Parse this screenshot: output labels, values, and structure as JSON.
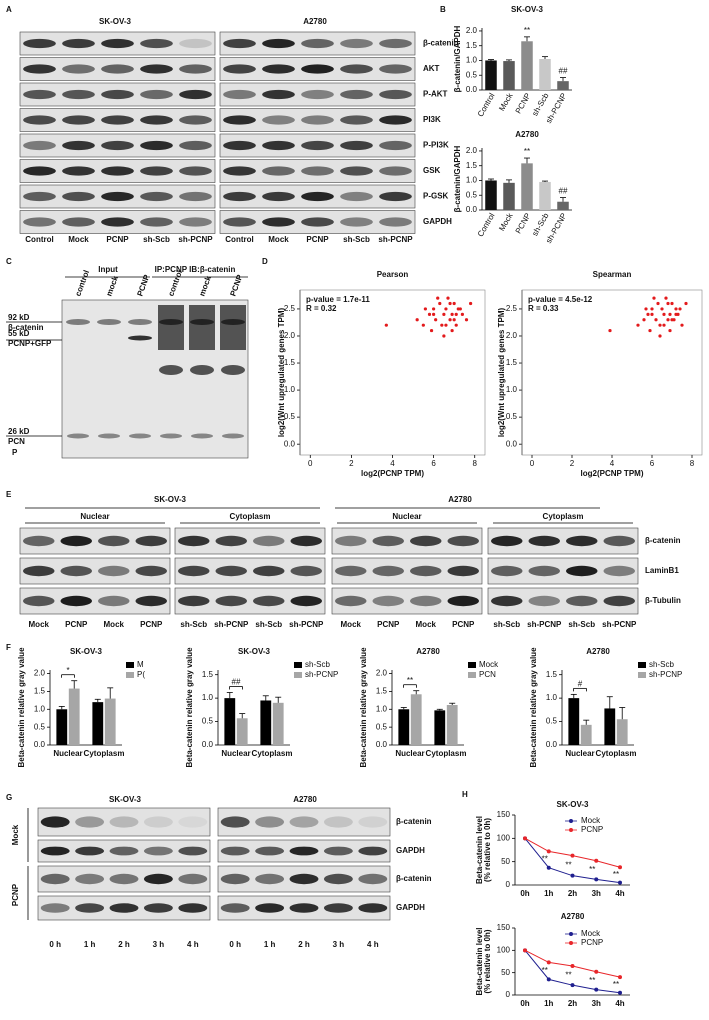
{
  "panel_labels": [
    "A",
    "B",
    "C",
    "D",
    "E",
    "F",
    "G",
    "H"
  ],
  "blot_a": {
    "headers": [
      "SK-OV-3",
      "A2780"
    ],
    "proteins": [
      "β-catenin",
      "AKT",
      "P-AKT",
      "PI3K",
      "P-PI3K",
      "GSK",
      "P-GSK",
      "GAPDH"
    ],
    "lanes": [
      [
        "Control",
        "Mock",
        "PCNP",
        "sh-Scb",
        "sh-PCNP"
      ],
      [
        "Control",
        "Mock",
        "PCNP",
        "sh-Scb",
        "sh-PCNP"
      ]
    ]
  },
  "blot_c": {
    "groups": [
      "Input",
      "IP:PCNP IB:β-catenin"
    ],
    "lanes": [
      "control",
      "mock",
      "PCNP",
      "control",
      "mock",
      "PCNP"
    ],
    "markers": [
      "92 kD",
      "β-catenin",
      "55 kD",
      "PCNP+GFP",
      "26 kD",
      "PCN",
      "P"
    ]
  },
  "blot_e": {
    "cells": [
      "SK-OV-3",
      "A2780"
    ],
    "fractions": [
      "Nuclear",
      "Cytoplasm",
      "Nuclear",
      "Cytoplasm"
    ],
    "proteins": [
      "β-catenin",
      "LaminB1",
      "β-Tubulin"
    ],
    "lanes": [
      [
        "Mock",
        "PCNP",
        "Mock",
        "PCNP"
      ],
      [
        "sh-Scb",
        "sh-PCNP",
        "sh-Scb",
        "sh-PCNP"
      ],
      [
        "Mock",
        "PCNP",
        "Mock",
        "PCNP"
      ],
      [
        "sh-Scb",
        "sh-PCNP",
        "sh-Scb",
        "sh-PCNP"
      ]
    ]
  },
  "blot_g": {
    "cells": [
      "SK-OV-3",
      "A2780"
    ],
    "groups": [
      "Mock",
      "PCNP"
    ],
    "proteins": [
      "β-catenin",
      "GAPDH",
      "β-catenin",
      "GAPDH"
    ],
    "lanes": [
      [
        "0 h",
        "1 h",
        "2 h",
        "3 h",
        "4 h"
      ],
      [
        "0 h",
        "1 h",
        "2 h",
        "3 h",
        "4 h"
      ]
    ]
  },
  "chart_data": [
    {
      "type": "bar",
      "title": "SK-OV-3",
      "ylabel": "β-catenin/GAPDH",
      "categories": [
        "Control",
        "Mock",
        "PCNP",
        "sh-Scb",
        "sh-PCNP"
      ],
      "values": [
        1.0,
        0.98,
        1.65,
        1.05,
        0.3
      ],
      "errors": [
        0.03,
        0.04,
        0.15,
        0.08,
        0.12
      ],
      "colors": [
        "#111111",
        "#5a5a5a",
        "#8c8c8c",
        "#c8c8c8",
        "#666666"
      ],
      "ylim": [
        0,
        2.1
      ],
      "yticks": [
        {
          "value": 0,
          "label": "0.0"
        },
        0.5,
        {
          "value": 1,
          "label": "1.0"
        },
        1.5,
        {
          "value": 2,
          "label": "2.0"
        }
      ],
      "annotations": [
        {
          "text": "**",
          "x": "PCNP"
        },
        {
          "text": "##",
          "x": "sh-PCNP"
        }
      ]
    },
    {
      "type": "bar",
      "title": "A2780",
      "ylabel": "β-catenin/GAPDH",
      "categories": [
        "Control",
        "Mock",
        "PCNP",
        "sh-Scb",
        "sh-PCNP"
      ],
      "values": [
        1.0,
        0.92,
        1.58,
        0.95,
        0.28
      ],
      "errors": [
        0.05,
        0.1,
        0.18,
        0.03,
        0.14
      ],
      "colors": [
        "#111111",
        "#5a5a5a",
        "#8c8c8c",
        "#c8c8c8",
        "#666666"
      ],
      "ylim": [
        0,
        2.1
      ],
      "yticks": [
        {
          "value": 0,
          "label": "0.0"
        },
        0.5,
        {
          "value": 1,
          "label": "1.0"
        },
        1.5,
        {
          "value": 2,
          "label": "2.0"
        }
      ],
      "annotations": [
        {
          "text": "**",
          "x": "PCNP"
        },
        {
          "text": "##",
          "x": "sh-PCNP"
        }
      ]
    },
    {
      "type": "scatter",
      "title": "Pearson",
      "xlabel": "log2(PCNP TPM)",
      "ylabel": "log2(Wnt upregulated genes TPM)",
      "annotations": [
        {
          "text": "p-value = 1.7e-11"
        },
        {
          "text": "R = 0.32"
        }
      ],
      "color": "#e31a1c",
      "x": [
        5.2,
        5.5,
        5.8,
        6.0,
        6.1,
        6.3,
        6.4,
        6.5,
        6.6,
        6.7,
        6.8,
        6.9,
        7.0,
        7.1,
        7.2,
        7.4,
        7.6,
        5.9,
        6.2,
        6.5,
        6.8,
        7.0,
        7.3,
        6.0,
        6.6,
        5.6,
        6.9,
        7.1,
        3.7,
        7.8
      ],
      "values": [
        2.3,
        2.2,
        2.4,
        2.5,
        2.3,
        2.6,
        2.2,
        2.4,
        2.5,
        2.7,
        2.3,
        2.4,
        2.6,
        2.2,
        2.5,
        2.4,
        2.3,
        2.1,
        2.7,
        2.0,
        2.6,
        2.3,
        2.5,
        2.4,
        2.2,
        2.5,
        2.1,
        2.4,
        2.2,
        2.6
      ],
      "xlim": [
        -0.5,
        8.5
      ],
      "xticks": [
        0,
        2,
        4,
        6,
        8
      ],
      "ylim": [
        -0.2,
        2.85
      ],
      "yticks": [
        {
          "value": 0,
          "label": "0.0"
        },
        0.5,
        {
          "value": 1,
          "label": "1.0"
        },
        1.5,
        {
          "value": 2,
          "label": "2.0"
        },
        2.5
      ]
    },
    {
      "type": "scatter",
      "title": "Spearman",
      "xlabel": "log2(PCNP TPM)",
      "ylabel": "log2(Wnt upregulated genes TPM)",
      "annotations": [
        {
          "text": "p-value = 4.5e-12"
        },
        {
          "text": "R = 0.33"
        }
      ],
      "color": "#e31a1c",
      "x": [
        5.3,
        5.6,
        5.8,
        6.0,
        6.2,
        6.3,
        6.4,
        6.5,
        6.6,
        6.7,
        6.8,
        6.9,
        7.0,
        7.1,
        7.2,
        7.3,
        7.5,
        5.9,
        6.1,
        6.4,
        6.8,
        7.0,
        7.4,
        6.0,
        6.6,
        5.7,
        6.9,
        7.2,
        3.9,
        7.7
      ],
      "values": [
        2.2,
        2.3,
        2.4,
        2.5,
        2.3,
        2.6,
        2.2,
        2.5,
        2.4,
        2.7,
        2.3,
        2.4,
        2.6,
        2.3,
        2.5,
        2.4,
        2.2,
        2.1,
        2.7,
        2.0,
        2.6,
        2.3,
        2.5,
        2.4,
        2.2,
        2.5,
        2.1,
        2.4,
        2.1,
        2.6
      ],
      "xlim": [
        -0.5,
        8.5
      ],
      "xticks": [
        0,
        2,
        4,
        6,
        8
      ],
      "ylim": [
        -0.2,
        2.85
      ],
      "yticks": [
        {
          "value": 0,
          "label": "0.0"
        },
        0.5,
        {
          "value": 1,
          "label": "1.0"
        },
        1.5,
        {
          "value": 2,
          "label": "2.0"
        },
        2.5
      ]
    },
    {
      "type": "grouped_bar",
      "title": "SK-OV-3",
      "ylabel": "Beta-catenin relative gray value",
      "categories": [
        "Nuclear",
        "Cytoplasm"
      ],
      "series": [
        {
          "name": "M",
          "color": "#000000",
          "values": [
            1.0,
            1.2
          ],
          "errors": [
            0.08,
            0.08
          ]
        },
        {
          "name": "P(",
          "color": "#a6a6a6",
          "values": [
            1.58,
            1.3
          ],
          "errors": [
            0.22,
            0.3
          ]
        }
      ],
      "ylim": [
        0,
        2.1
      ],
      "yticks": [
        {
          "value": 0,
          "label": "0.0"
        },
        0.5,
        {
          "value": 1,
          "label": "1.0"
        },
        1.5,
        {
          "value": 2,
          "label": "2.0"
        }
      ],
      "annotations": [
        {
          "text": "*",
          "x": "Nuclear"
        }
      ]
    },
    {
      "type": "grouped_bar",
      "title": "SK-OV-3",
      "ylabel": "Beta-catenin relative gray value",
      "categories": [
        "Nuclear",
        "Cytoplasm"
      ],
      "series": [
        {
          "name": "sh-Scb",
          "color": "#000000",
          "values": [
            1.0,
            0.95
          ],
          "errors": [
            0.12,
            0.1
          ]
        },
        {
          "name": "sh-PCNP",
          "color": "#a6a6a6",
          "values": [
            0.57,
            0.9
          ],
          "errors": [
            0.1,
            0.12
          ]
        }
      ],
      "ylim": [
        0,
        1.6
      ],
      "yticks": [
        {
          "value": 0,
          "label": "0.0"
        },
        0.5,
        {
          "value": 1,
          "label": "1.0"
        },
        1.5
      ],
      "annotations": [
        {
          "text": "##",
          "x": "Nuclear"
        }
      ]
    },
    {
      "type": "grouped_bar",
      "title": "A2780",
      "ylabel": "Beta-catenin relative gray value",
      "categories": [
        "Nuclear",
        "Cytoplasm"
      ],
      "series": [
        {
          "name": "Mock",
          "color": "#000000",
          "values": [
            1.0,
            0.97
          ],
          "errors": [
            0.05,
            0.03
          ]
        },
        {
          "name": "PCN",
          "color": "#a6a6a6",
          "values": [
            1.42,
            1.12
          ],
          "errors": [
            0.1,
            0.05
          ]
        }
      ],
      "ylim": [
        0,
        2.1
      ],
      "yticks": [
        {
          "value": 0,
          "label": "0.0"
        },
        0.5,
        {
          "value": 1,
          "label": "1.0"
        },
        1.5,
        {
          "value": 2,
          "label": "2.0"
        }
      ],
      "annotations": [
        {
          "text": "**",
          "x": "Nuclear"
        }
      ]
    },
    {
      "type": "grouped_bar",
      "title": "A2780",
      "ylabel": "Beta-catenin relative gray value",
      "categories": [
        "Nuclear",
        "Cytoplasm"
      ],
      "series": [
        {
          "name": "sh-Scb",
          "color": "#000000",
          "values": [
            1.0,
            0.78
          ],
          "errors": [
            0.08,
            0.25
          ]
        },
        {
          "name": "sh-PCNP",
          "color": "#a6a6a6",
          "values": [
            0.43,
            0.55
          ],
          "errors": [
            0.1,
            0.25
          ]
        }
      ],
      "ylim": [
        0,
        1.6
      ],
      "yticks": [
        {
          "value": 0,
          "label": "0.0"
        },
        0.5,
        {
          "value": 1,
          "label": "1.0"
        },
        1.5
      ],
      "annotations": [
        {
          "text": "#",
          "x": "Nuclear"
        }
      ]
    },
    {
      "type": "line",
      "title": "SK-OV-3",
      "ylabel": [
        "Beta-catenin level",
        "(% relative to 0h)"
      ],
      "categories": [
        "0h",
        "1h",
        "2h",
        "3h",
        "4h"
      ],
      "series": [
        {
          "name": "Mock",
          "color": "#1f1f8f",
          "values": [
            100,
            37,
            20,
            12,
            5
          ]
        },
        {
          "name": "PCNP",
          "color": "#e8262a",
          "values": [
            100,
            72,
            63,
            52,
            38
          ]
        }
      ],
      "ylim": [
        0,
        150
      ],
      "yticks": [
        0,
        50,
        100,
        150
      ],
      "annotations": [
        {
          "text": "**",
          "x": "1h"
        },
        {
          "text": "**",
          "x": "2h"
        },
        {
          "text": "**",
          "x": "3h"
        },
        {
          "text": "**",
          "x": "4h"
        }
      ]
    },
    {
      "type": "line",
      "title": "A2780",
      "ylabel": [
        "Beta-catenin level",
        "(% relative to 0h)"
      ],
      "categories": [
        "0h",
        "1h",
        "2h",
        "3h",
        "4h"
      ],
      "series": [
        {
          "name": "Mock",
          "color": "#1f1f8f",
          "values": [
            100,
            35,
            22,
            12,
            5
          ]
        },
        {
          "name": "PCNP",
          "color": "#e8262a",
          "values": [
            100,
            73,
            65,
            52,
            40
          ]
        }
      ],
      "ylim": [
        0,
        150
      ],
      "yticks": [
        0,
        50,
        100,
        150
      ],
      "annotations": [
        {
          "text": "**",
          "x": "1h"
        },
        {
          "text": "**",
          "x": "2h"
        },
        {
          "text": "**",
          "x": "3h"
        },
        {
          "text": "**",
          "x": "4h"
        }
      ]
    }
  ]
}
